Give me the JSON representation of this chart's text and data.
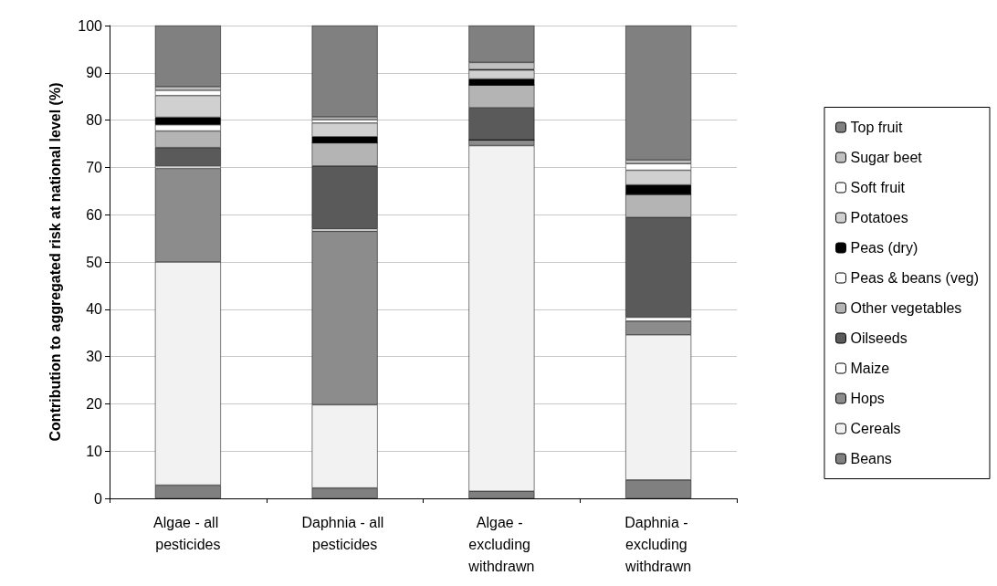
{
  "chart_data": {
    "type": "bar",
    "stacked": true,
    "ylabel": "Contribution to aggregated risk at national level (%)",
    "categories": [
      "Algae - all pesticides",
      "Daphnia - all pesticides",
      "Algae - excluding withdrawn",
      "Daphnia - excluding withdrawn"
    ],
    "series": [
      {
        "name": "Beans",
        "color": "#808080",
        "values": [
          2.8,
          2.2,
          1.5,
          3.9
        ]
      },
      {
        "name": "Cereals",
        "color": "#f2f2f2",
        "values": [
          47.2,
          17.6,
          73.1,
          30.7
        ]
      },
      {
        "name": "Hops",
        "color": "#8c8c8c",
        "values": [
          19.8,
          36.7,
          1.2,
          2.9
        ]
      },
      {
        "name": "Maize",
        "color": "#ffffff",
        "values": [
          0.5,
          0.5,
          0,
          0.8
        ]
      },
      {
        "name": "Oilseeds",
        "color": "#5a5a5a",
        "values": [
          3.9,
          13.3,
          6.8,
          21.1
        ]
      },
      {
        "name": "Other vegetables",
        "color": "#b4b4b4",
        "values": [
          3.5,
          4.9,
          4.8,
          4.9
        ]
      },
      {
        "name": "Peas & beans (veg)",
        "color": "#ffffff",
        "values": [
          1.3,
          0,
          0,
          0
        ]
      },
      {
        "name": "Peas (dry)",
        "color": "#000000",
        "values": [
          1.6,
          1.3,
          1.3,
          2.0
        ]
      },
      {
        "name": "Potatoes",
        "color": "#d0d0d0",
        "values": [
          4.6,
          2.9,
          1.9,
          3.1
        ]
      },
      {
        "name": "Soft fruit",
        "color": "#ffffff",
        "values": [
          1.1,
          0.7,
          0.1,
          1.4
        ]
      },
      {
        "name": "Sugar beet",
        "color": "#c0c0c0",
        "values": [
          0.8,
          0.6,
          1.5,
          0.8
        ]
      },
      {
        "name": "Top fruit",
        "color": "#808080",
        "values": [
          12.9,
          19.3,
          7.8,
          28.4
        ]
      }
    ],
    "ylim": [
      0,
      100
    ],
    "yticks": [
      0,
      10,
      20,
      30,
      40,
      50,
      60,
      70,
      80,
      90,
      100
    ],
    "grid": "y",
    "legend": "right"
  }
}
